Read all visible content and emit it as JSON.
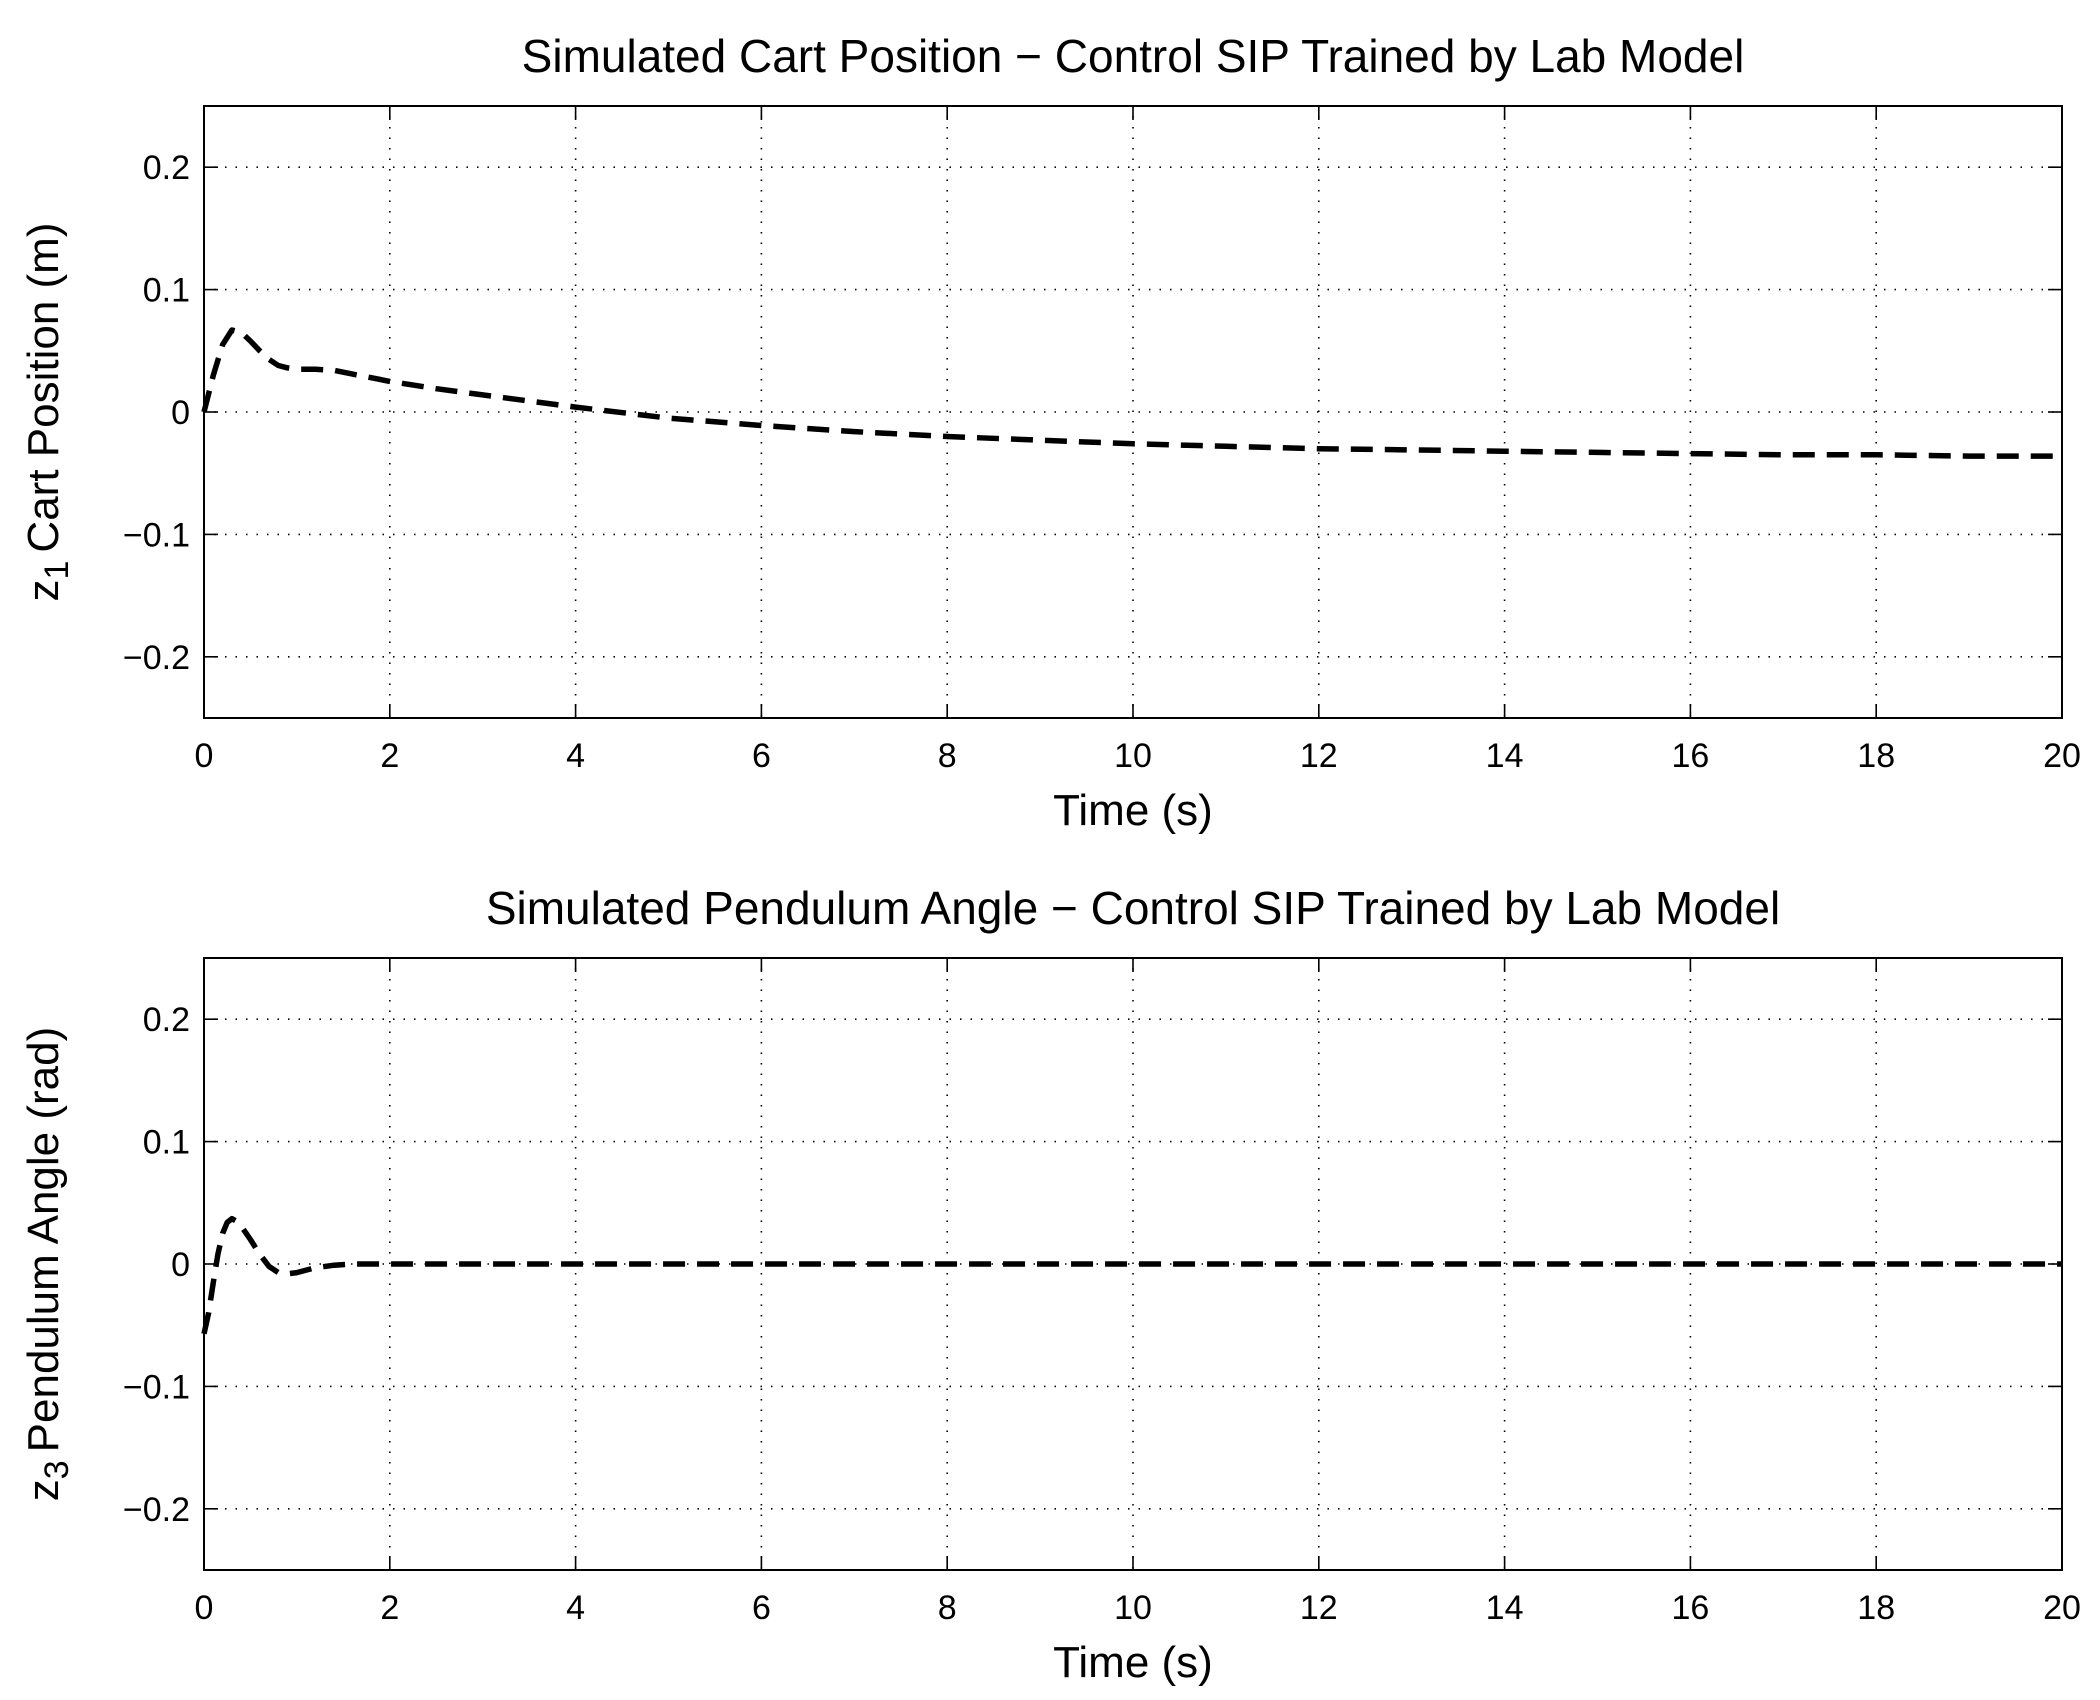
{
  "chart_data": [
    {
      "type": "line",
      "title": "Simulated Cart Position − Control SIP Trained by Lab Model",
      "xlabel": "Time (s)",
      "ylabel": {
        "var": "z",
        "sub": "1",
        "text": "Cart Position (m)"
      },
      "xlim": [
        0,
        20
      ],
      "ylim": [
        -0.25,
        0.25
      ],
      "xticks": [
        0,
        2,
        4,
        6,
        8,
        10,
        12,
        14,
        16,
        18,
        20
      ],
      "xtick_labels": [
        "0",
        "2",
        "4",
        "6",
        "8",
        "10",
        "12",
        "14",
        "16",
        "18",
        "20"
      ],
      "yticks": [
        0.2,
        0.1,
        0,
        -0.1,
        -0.2
      ],
      "ytick_labels": [
        "0.2",
        "0.1",
        "0",
        "−0.1",
        "−0.2"
      ],
      "grid": true,
      "line_style": "dashed",
      "series": [
        {
          "name": "z1",
          "x": [
            0,
            0.1,
            0.2,
            0.3,
            0.4,
            0.5,
            0.6,
            0.7,
            0.8,
            0.9,
            1.0,
            1.2,
            1.4,
            1.6,
            1.8,
            2.0,
            2.5,
            3.0,
            3.5,
            4.0,
            5.0,
            6.0,
            7.0,
            8.0,
            9.0,
            10.0,
            11.0,
            12.0,
            13.0,
            14.0,
            15.0,
            16.0,
            17.0,
            18.0,
            19.0,
            20.0
          ],
          "y": [
            0.0,
            0.03,
            0.055,
            0.067,
            0.065,
            0.058,
            0.05,
            0.043,
            0.038,
            0.036,
            0.035,
            0.035,
            0.034,
            0.031,
            0.028,
            0.025,
            0.019,
            0.014,
            0.009,
            0.004,
            -0.005,
            -0.011,
            -0.016,
            -0.02,
            -0.023,
            -0.026,
            -0.028,
            -0.03,
            -0.031,
            -0.032,
            -0.033,
            -0.034,
            -0.035,
            -0.035,
            -0.036,
            -0.036
          ]
        }
      ]
    },
    {
      "type": "line",
      "title": "Simulated Pendulum Angle − Control SIP Trained by Lab Model",
      "xlabel": "Time (s)",
      "ylabel": {
        "var": "z",
        "sub": "3",
        "text": "Pendulum Angle (rad)"
      },
      "xlim": [
        0,
        20
      ],
      "ylim": [
        -0.25,
        0.25
      ],
      "xticks": [
        0,
        2,
        4,
        6,
        8,
        10,
        12,
        14,
        16,
        18,
        20
      ],
      "xtick_labels": [
        "0",
        "2",
        "4",
        "6",
        "8",
        "10",
        "12",
        "14",
        "16",
        "18",
        "20"
      ],
      "yticks": [
        0.2,
        0.1,
        0,
        -0.1,
        -0.2
      ],
      "ytick_labels": [
        "0.2",
        "0.1",
        "0",
        "−0.1",
        "−0.2"
      ],
      "grid": true,
      "line_style": "dashed",
      "series": [
        {
          "name": "z3",
          "x": [
            0,
            0.05,
            0.1,
            0.15,
            0.2,
            0.25,
            0.3,
            0.35,
            0.4,
            0.5,
            0.6,
            0.7,
            0.8,
            0.9,
            1.0,
            1.1,
            1.2,
            1.4,
            1.6,
            1.8,
            2.0,
            3.0,
            5.0,
            10.0,
            15.0,
            20.0
          ],
          "y": [
            -0.057,
            -0.04,
            -0.015,
            0.008,
            0.025,
            0.034,
            0.037,
            0.035,
            0.031,
            0.02,
            0.008,
            -0.002,
            -0.007,
            -0.008,
            -0.007,
            -0.005,
            -0.003,
            -0.001,
            0.0,
            0.0,
            0.0,
            0.0,
            0.0,
            0.0,
            0.0,
            0.0
          ]
        }
      ]
    }
  ]
}
